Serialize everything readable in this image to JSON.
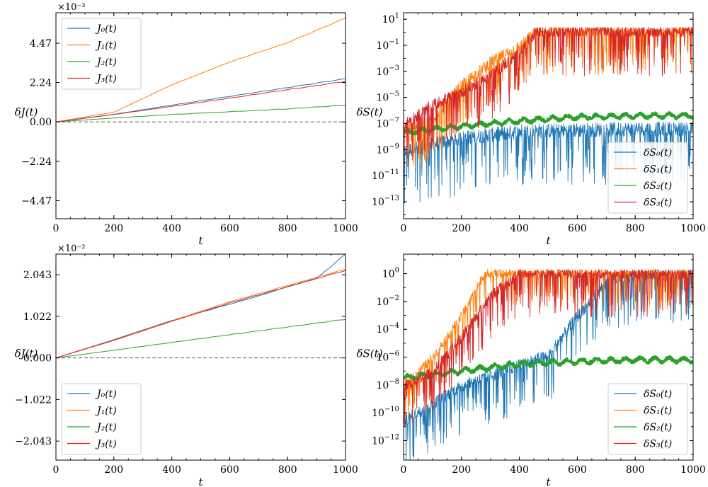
{
  "colors": {
    "c0": "#1f77b4",
    "c1": "#ff7f0e",
    "c2": "#2ca02c",
    "c3": "#d62728"
  },
  "chart_data": [
    {
      "id": "top-left",
      "type": "line",
      "yscale": "linear",
      "xlabel": "t",
      "ylabel": "δJ(t)",
      "xlim": [
        0,
        1000
      ],
      "ylim": [
        -0.0055,
        0.0062
      ],
      "xticks": [
        0,
        200,
        400,
        600,
        800,
        1000
      ],
      "xtick_labels": [
        "0",
        "200",
        "400",
        "600",
        "800",
        "1000"
      ],
      "yticks": [
        -0.00447,
        -0.00224,
        0,
        0.00224,
        0.00447
      ],
      "ytick_labels": [
        "−4.47",
        "−2.24",
        "0.00",
        "2.24",
        "4.47"
      ],
      "sci_label": "×10⁻³",
      "hline": 0,
      "legend_position": "top-left",
      "series": [
        {
          "name": "J₀(t)",
          "color_key": "c0",
          "x": [
            0,
            200,
            400,
            600,
            800,
            1000
          ],
          "y": [
            0,
            0.00043,
            0.00095,
            0.00145,
            0.00195,
            0.00245
          ]
        },
        {
          "name": "J₁(t)",
          "color_key": "c1",
          "x": [
            0,
            200,
            400,
            600,
            800,
            1000
          ],
          "y": [
            0,
            0.00055,
            0.0021,
            0.0034,
            0.0045,
            0.0059
          ]
        },
        {
          "name": "J₂(t)",
          "color_key": "c2",
          "x": [
            0,
            200,
            400,
            600,
            800,
            1000
          ],
          "y": [
            0,
            0.00022,
            0.00042,
            0.00058,
            0.00074,
            0.00095
          ]
        },
        {
          "name": "J₃(t)",
          "color_key": "c3",
          "x": [
            0,
            200,
            400,
            600,
            800,
            1000
          ],
          "y": [
            0,
            0.00042,
            0.00088,
            0.00135,
            0.00183,
            0.0023
          ]
        }
      ]
    },
    {
      "id": "top-right",
      "type": "line",
      "yscale": "log",
      "xlabel": "t",
      "ylabel": "δS(t)",
      "xlim": [
        0,
        1000
      ],
      "ylim_exp": [
        -14.3,
        1.5
      ],
      "xticks": [
        0,
        200,
        400,
        600,
        800,
        1000
      ],
      "xtick_labels": [
        "0",
        "200",
        "400",
        "600",
        "800",
        "1000"
      ],
      "ytick_exps": [
        1,
        -1,
        -3,
        -5,
        -7,
        -9,
        -11,
        -13
      ],
      "ytick_labels": [
        "1",
        "−1",
        "−3",
        "−5",
        "−7",
        "−9",
        "−11",
        "−13"
      ],
      "legend_position": "bottom-right",
      "series": [
        {
          "name": "δS₀(t)",
          "color_key": "c0",
          "x": [
            0,
            100,
            200,
            400,
            600,
            800,
            1000
          ],
          "log10_y": [
            -9,
            -8.5,
            -8,
            -7.5,
            -7.4,
            -7.3,
            -7.3
          ],
          "noise_amp": 2.5
        },
        {
          "name": "δS₁(t)",
          "color_key": "c1",
          "x": [
            0,
            100,
            200,
            300,
            400,
            460,
            600,
            800,
            1000
          ],
          "log10_y": [
            -7.5,
            -6.5,
            -4,
            -2.2,
            -1,
            0.2,
            0.2,
            0.2,
            0.2
          ],
          "noise_amp": 2.0
        },
        {
          "name": "δS₂(t)",
          "color_key": "c2",
          "x": [
            0,
            200,
            400,
            600,
            800,
            1000
          ],
          "log10_y": [
            -7.7,
            -7.2,
            -6.8,
            -6.5,
            -6.4,
            -6.4
          ],
          "noise_amp": 0.25
        },
        {
          "name": "δS₃(t)",
          "color_key": "c3",
          "x": [
            0,
            100,
            200,
            300,
            400,
            460,
            600,
            800,
            1000
          ],
          "log10_y": [
            -7,
            -5.5,
            -4.5,
            -3.2,
            -1.5,
            0.2,
            0.2,
            0.2,
            0.2
          ],
          "noise_amp": 2.0
        }
      ]
    },
    {
      "id": "bottom-left",
      "type": "line",
      "yscale": "linear",
      "xlabel": "t",
      "ylabel": "δJ(t)",
      "xlim": [
        0,
        1000
      ],
      "ylim": [
        -0.0251,
        0.0255
      ],
      "xticks": [
        0,
        200,
        400,
        600,
        800,
        1000
      ],
      "xtick_labels": [
        "0",
        "200",
        "400",
        "600",
        "800",
        "1000"
      ],
      "yticks": [
        -0.02043,
        -0.01022,
        0,
        0.01022,
        0.02043
      ],
      "ytick_labels": [
        "−2.043",
        "−1.022",
        "0.000",
        "1.022",
        "2.043"
      ],
      "sci_label": "×10⁻²",
      "hline": 0,
      "legend_position": "bottom-left",
      "series": [
        {
          "name": "J₀(t)",
          "color_key": "c0",
          "x": [
            0,
            200,
            400,
            500,
            600,
            700,
            800,
            900,
            950,
            1000
          ],
          "y": [
            0,
            0.0045,
            0.0092,
            0.0112,
            0.0132,
            0.0152,
            0.0175,
            0.0195,
            0.0225,
            0.0255
          ]
        },
        {
          "name": "J₁(t)",
          "color_key": "c1",
          "x": [
            0,
            200,
            400,
            600,
            800,
            1000
          ],
          "y": [
            0,
            0.0044,
            0.0091,
            0.0138,
            0.0178,
            0.0218
          ]
        },
        {
          "name": "J₂(t)",
          "color_key": "c2",
          "x": [
            0,
            200,
            400,
            600,
            800,
            1000
          ],
          "y": [
            0,
            0.0019,
            0.0038,
            0.0057,
            0.0076,
            0.0095
          ]
        },
        {
          "name": "J₃(t)",
          "color_key": "c3",
          "x": [
            0,
            200,
            400,
            600,
            800,
            1000
          ],
          "y": [
            0,
            0.0043,
            0.009,
            0.0135,
            0.0175,
            0.0215
          ]
        }
      ]
    },
    {
      "id": "bottom-right",
      "type": "line",
      "yscale": "log",
      "xlabel": "t",
      "ylabel": "δS(t)",
      "xlim": [
        0,
        1000
      ],
      "ylim_exp": [
        -13.4,
        1.4
      ],
      "xticks": [
        0,
        200,
        400,
        600,
        800,
        1000
      ],
      "xtick_labels": [
        "0",
        "200",
        "400",
        "600",
        "800",
        "1000"
      ],
      "ytick_exps": [
        0,
        -2,
        -4,
        -6,
        -8,
        -10,
        -12
      ],
      "ytick_labels": [
        "0",
        "−2",
        "−4",
        "−6",
        "−8",
        "−10",
        "−12"
      ],
      "legend_position": "bottom-right",
      "series": [
        {
          "name": "δS₀(t)",
          "color_key": "c0",
          "x": [
            0,
            200,
            400,
            500,
            600,
            700,
            800,
            1000
          ],
          "log10_y": [
            -10.5,
            -8,
            -6.5,
            -5.8,
            -3,
            -0.5,
            0,
            0
          ],
          "noise_amp": 2.0
        },
        {
          "name": "δS₁(t)",
          "color_key": "c1",
          "x": [
            0,
            100,
            200,
            280,
            400,
            600,
            800,
            1000
          ],
          "log10_y": [
            -8,
            -6,
            -3,
            0.1,
            0.1,
            0.1,
            0.1,
            0.1
          ],
          "noise_amp": 1.5
        },
        {
          "name": "δS₂(t)",
          "color_key": "c2",
          "x": [
            0,
            200,
            400,
            600,
            800,
            1000
          ],
          "log10_y": [
            -7.5,
            -7,
            -6.5,
            -6.3,
            -6.2,
            -6.2
          ],
          "noise_amp": 0.25
        },
        {
          "name": "δS₃(t)",
          "color_key": "c3",
          "x": [
            0,
            100,
            200,
            300,
            400,
            600,
            800,
            1000
          ],
          "log10_y": [
            -8,
            -7,
            -4.5,
            -1.5,
            0.1,
            0.1,
            0.1,
            0.1
          ],
          "noise_amp": 1.8
        }
      ]
    }
  ]
}
